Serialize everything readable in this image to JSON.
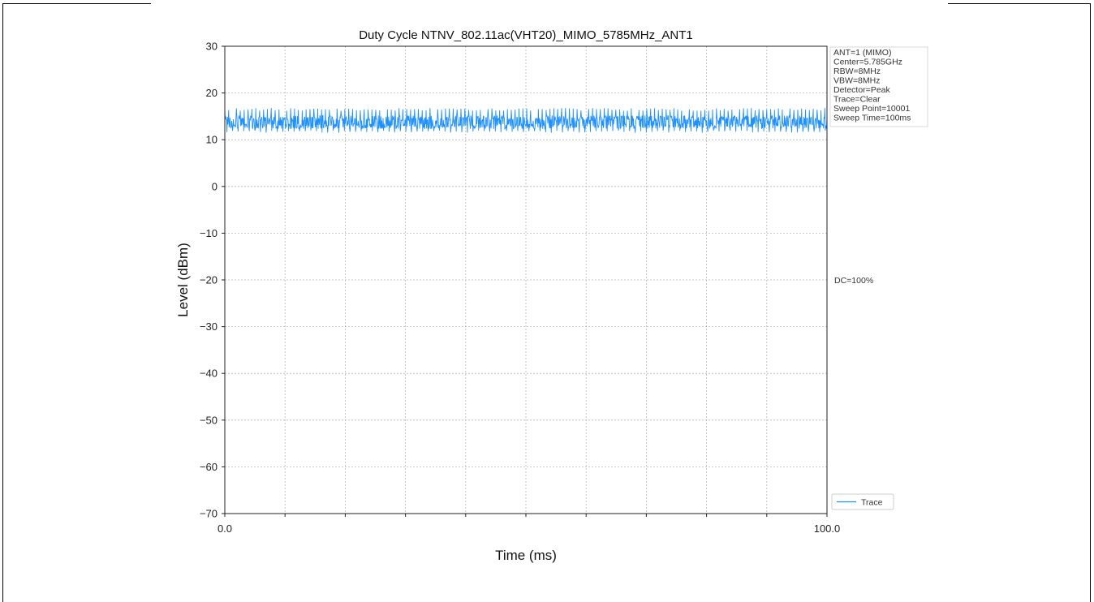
{
  "chart_data": {
    "type": "line",
    "title": "Duty Cycle NTNV_802.11ac(VHT20)_MIMO_5785MHz_ANT1",
    "xlabel": "Time (ms)",
    "ylabel": "Level (dBm)",
    "xlim": [
      0.0,
      100.0
    ],
    "ylim": [
      -70,
      30
    ],
    "x_tick_labels": [
      "0.0",
      "100.0"
    ],
    "y_ticks": [
      30,
      20,
      10,
      0,
      -10,
      -20,
      -30,
      -40,
      -50,
      -60,
      -70
    ],
    "y_tick_labels": [
      "30",
      "20",
      "10",
      "0",
      "−10",
      "−20",
      "−30",
      "−40",
      "−50",
      "−60",
      "−70"
    ],
    "x_grid_divisions": 10,
    "grid": true,
    "series": [
      {
        "name": "Trace",
        "color": "#1e90ff",
        "band_min": 11.5,
        "band_max": 16.8,
        "typical_min": 12.3,
        "typical_max": 15.2
      }
    ],
    "legend": {
      "position": "bottom-right",
      "entries": [
        "Trace"
      ]
    },
    "annotations": [
      "ANT=1 (MIMO)",
      "Center=5.785GHz",
      "RBW=8MHz",
      "VBW=8MHz",
      "Detector=Peak",
      "Trace=Clear",
      "Sweep Point=10001",
      "Sweep Time=100ms"
    ],
    "duty_cycle_label": "DC=100%",
    "duty_cycle_level": -20
  }
}
